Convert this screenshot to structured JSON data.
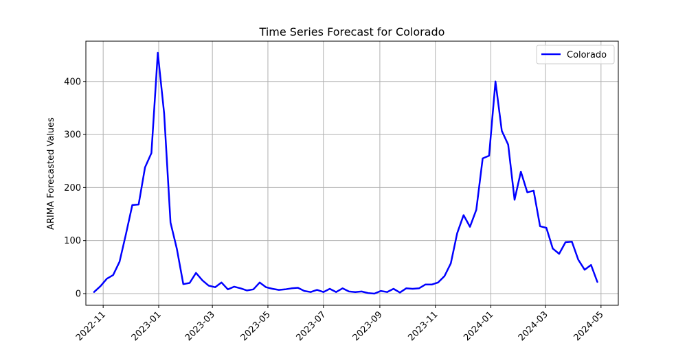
{
  "chart_data": {
    "type": "line",
    "title": "Time Series Forecast for Colorado",
    "xlabel": "",
    "ylabel": "ARIMA Forecasted Values",
    "grid": true,
    "legend_placement": "top-right",
    "xlim": [
      "2022-10-13",
      "2024-05-20"
    ],
    "ylim": [
      -22,
      476
    ],
    "x_ticks": [
      "2022-11",
      "2023-01",
      "2023-03",
      "2023-05",
      "2023-07",
      "2023-09",
      "2023-11",
      "2024-01",
      "2024-03",
      "2024-05"
    ],
    "x_tick_dates": [
      "2022-11-01",
      "2023-01-01",
      "2023-03-01",
      "2023-05-01",
      "2023-07-01",
      "2023-09-01",
      "2023-11-01",
      "2024-01-01",
      "2024-03-01",
      "2024-05-01"
    ],
    "y_ticks": [
      0,
      100,
      200,
      300,
      400
    ],
    "series": [
      {
        "name": "Colorado",
        "color": "#0000ff",
        "x": [
          "2022-10-22",
          "2022-10-29",
          "2022-11-05",
          "2022-11-12",
          "2022-11-19",
          "2022-11-26",
          "2022-12-03",
          "2022-12-10",
          "2022-12-17",
          "2022-12-24",
          "2022-12-31",
          "2023-01-07",
          "2023-01-14",
          "2023-01-21",
          "2023-01-28",
          "2023-02-04",
          "2023-02-11",
          "2023-02-18",
          "2023-02-25",
          "2023-03-04",
          "2023-03-11",
          "2023-03-18",
          "2023-03-25",
          "2023-04-01",
          "2023-04-08",
          "2023-04-15",
          "2023-04-22",
          "2023-04-29",
          "2023-05-06",
          "2023-05-13",
          "2023-05-20",
          "2023-05-27",
          "2023-06-03",
          "2023-06-10",
          "2023-06-17",
          "2023-06-24",
          "2023-07-01",
          "2023-07-08",
          "2023-07-15",
          "2023-07-22",
          "2023-07-29",
          "2023-08-05",
          "2023-08-12",
          "2023-08-19",
          "2023-08-26",
          "2023-09-02",
          "2023-09-09",
          "2023-09-16",
          "2023-09-23",
          "2023-09-30",
          "2023-10-07",
          "2023-10-14",
          "2023-10-21",
          "2023-10-28",
          "2023-11-04",
          "2023-11-11",
          "2023-11-18",
          "2023-11-25",
          "2023-12-02",
          "2023-12-09",
          "2023-12-16",
          "2023-12-23",
          "2023-12-30",
          "2024-01-06",
          "2024-01-13",
          "2024-01-20",
          "2024-01-27",
          "2024-02-03",
          "2024-02-10",
          "2024-02-17",
          "2024-02-24",
          "2024-03-02",
          "2024-03-09",
          "2024-03-16",
          "2024-03-23",
          "2024-03-30",
          "2024-04-06",
          "2024-04-13",
          "2024-04-20",
          "2024-04-27"
        ],
        "values": [
          3,
          14,
          28,
          35,
          60,
          112,
          167,
          168,
          238,
          265,
          454,
          340,
          134,
          84,
          18,
          20,
          39,
          25,
          15,
          12,
          21,
          8,
          13,
          10,
          6,
          8,
          21,
          12,
          9,
          7,
          8,
          10,
          11,
          5,
          3,
          7,
          3,
          9,
          3,
          10,
          4,
          3,
          4,
          1,
          0,
          5,
          3,
          9,
          2,
          10,
          9,
          10,
          17,
          17,
          21,
          33,
          57,
          114,
          148,
          126,
          158,
          255,
          260,
          400,
          307,
          281,
          177,
          230,
          191,
          194,
          127,
          124,
          85,
          75,
          97,
          98,
          64,
          45,
          54,
          22
        ]
      }
    ]
  }
}
